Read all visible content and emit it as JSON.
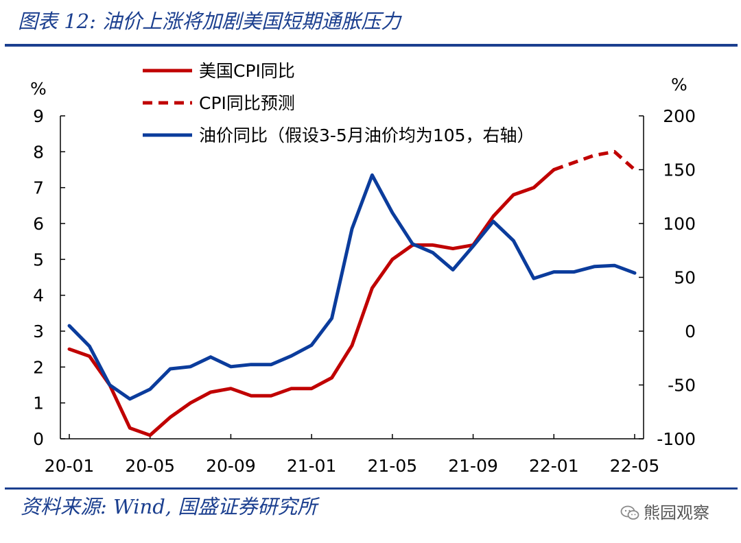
{
  "header": {
    "title": "图表 12: 油价上涨将加剧美国短期通胀压力"
  },
  "footer": {
    "source": "资料来源: Wind, 国盛证券研究所",
    "watermark": "熊园观察",
    "watermark_icon": "wechat-icon"
  },
  "colors": {
    "brand_blue": "#1b3f8f",
    "cpi_red": "#c00000",
    "oil_blue": "#0b3c9c"
  },
  "chart_data": {
    "type": "line",
    "x": [
      "20-01",
      "20-02",
      "20-03",
      "20-04",
      "20-05",
      "20-06",
      "20-07",
      "20-08",
      "20-09",
      "20-10",
      "20-11",
      "20-12",
      "21-01",
      "21-02",
      "21-03",
      "21-04",
      "21-05",
      "21-06",
      "21-07",
      "21-08",
      "21-09",
      "21-10",
      "21-11",
      "21-12",
      "22-01",
      "22-02",
      "22-03",
      "22-04",
      "22-05"
    ],
    "x_tick_labels": [
      "20-01",
      "20-05",
      "20-09",
      "21-01",
      "21-05",
      "21-09",
      "22-01",
      "22-05"
    ],
    "series": [
      {
        "name": "美国CPI同比",
        "axis": "left",
        "style": "solid",
        "color": "#c00000",
        "values": [
          2.5,
          2.3,
          1.5,
          0.3,
          0.1,
          0.6,
          1.0,
          1.3,
          1.4,
          1.2,
          1.2,
          1.4,
          1.4,
          1.7,
          2.6,
          4.2,
          5.0,
          5.4,
          5.4,
          5.3,
          5.4,
          6.2,
          6.8,
          7.0,
          7.5,
          null,
          null,
          null,
          null
        ]
      },
      {
        "name": "CPI同比预测",
        "axis": "left",
        "style": "dashed",
        "color": "#c00000",
        "values": [
          null,
          null,
          null,
          null,
          null,
          null,
          null,
          null,
          null,
          null,
          null,
          null,
          null,
          null,
          null,
          null,
          null,
          null,
          null,
          null,
          null,
          null,
          null,
          null,
          7.5,
          7.7,
          7.9,
          8.0,
          7.5
        ]
      },
      {
        "name": "油价同比（假设3-5月油价均为105，右轴）",
        "axis": "right",
        "style": "solid",
        "color": "#0b3c9c",
        "values": [
          5,
          -14,
          -50,
          -63,
          -54,
          -35,
          -33,
          -24,
          -33,
          -31,
          -31,
          -23,
          -13,
          12,
          95,
          145,
          110,
          81,
          73,
          57,
          79,
          102,
          84,
          49,
          55,
          55,
          60,
          61,
          54
        ]
      }
    ],
    "y_left": {
      "label": "%",
      "ticks": [
        0,
        1,
        2,
        3,
        4,
        5,
        6,
        7,
        8,
        9
      ],
      "range": [
        0,
        9
      ]
    },
    "y_right": {
      "label": "%",
      "ticks": [
        -100,
        -50,
        0,
        50,
        100,
        150,
        200
      ],
      "range": [
        -100,
        200
      ]
    },
    "legend_position": "top-left",
    "grid": false
  }
}
